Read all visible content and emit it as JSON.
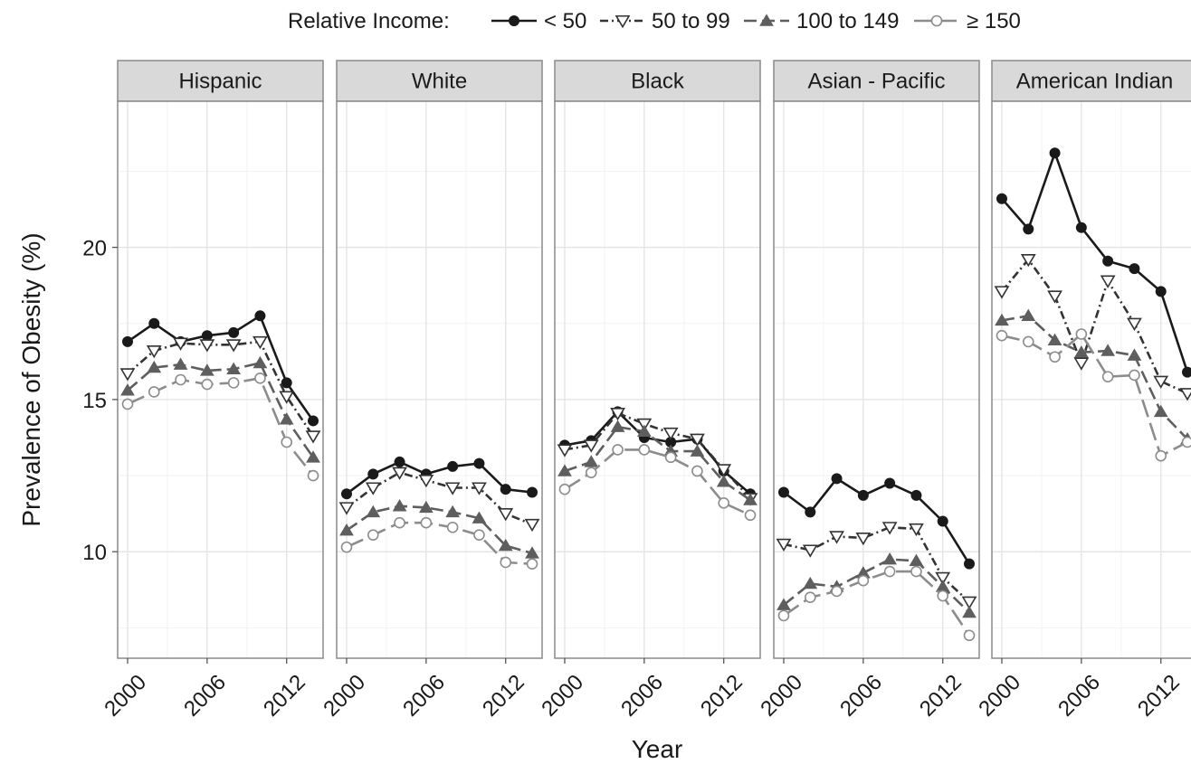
{
  "chart_data": {
    "type": "line",
    "legend": {
      "title": "Relative Income:",
      "position": "top"
    },
    "xlabel": "Year",
    "ylabel": "Prevalence of Obesity (%)",
    "ylim": [
      6.5,
      24.8
    ],
    "y_ticks": [
      10,
      15,
      20
    ],
    "x_ticks": [
      2000,
      2006,
      2012
    ],
    "x_tick_labels": [
      "2000",
      "2006",
      "2012"
    ],
    "grid": true,
    "series_styles": [
      {
        "name": "< 50",
        "color": "#1a1a1a",
        "dash": "",
        "marker": "filled-circle"
      },
      {
        "name": "50 to 99",
        "color": "#333333",
        "dash": "9 4 2 4",
        "marker": "open-triangle-down"
      },
      {
        "name": "100 to 149",
        "color": "#5e5e5e",
        "dash": "14 6",
        "marker": "filled-triangle-up"
      },
      {
        "name": "≥ 150",
        "color": "#8c8c8c",
        "dash": "20 7",
        "marker": "open-circle"
      }
    ],
    "panels": [
      {
        "name": "Hispanic",
        "x": [
          2000,
          2002,
          2004,
          2006,
          2008,
          2010,
          2012,
          2014
        ],
        "series": [
          {
            "name": "< 50",
            "values": [
              16.9,
              17.5,
              16.9,
              17.1,
              17.2,
              17.75,
              15.55,
              14.3
            ]
          },
          {
            "name": "50 to 99",
            "values": [
              15.85,
              16.6,
              16.85,
              16.8,
              16.8,
              16.9,
              15.1,
              13.8
            ]
          },
          {
            "name": "100 to 149",
            "values": [
              15.3,
              16.05,
              16.15,
              15.95,
              16.0,
              16.2,
              14.35,
              13.1
            ]
          },
          {
            "name": "≥ 150",
            "values": [
              14.85,
              15.25,
              15.65,
              15.5,
              15.55,
              15.7,
              13.6,
              12.5
            ]
          }
        ]
      },
      {
        "name": "White",
        "x": [
          2000,
          2002,
          2004,
          2006,
          2008,
          2010,
          2012,
          2014
        ],
        "series": [
          {
            "name": "< 50",
            "values": [
              11.9,
              12.55,
              12.95,
              12.55,
              12.8,
              12.9,
              12.05,
              11.95
            ]
          },
          {
            "name": "50 to 99",
            "values": [
              11.45,
              12.1,
              12.6,
              12.35,
              12.1,
              12.1,
              11.25,
              10.9
            ]
          },
          {
            "name": "100 to 149",
            "values": [
              10.7,
              11.3,
              11.5,
              11.45,
              11.3,
              11.1,
              10.2,
              9.95
            ]
          },
          {
            "name": "≥ 150",
            "values": [
              10.15,
              10.55,
              10.95,
              10.95,
              10.8,
              10.55,
              9.65,
              9.6
            ]
          }
        ]
      },
      {
        "name": "Black",
        "x": [
          2000,
          2002,
          2004,
          2006,
          2008,
          2010,
          2012,
          2014
        ],
        "series": [
          {
            "name": "< 50",
            "values": [
              13.5,
              13.65,
              14.6,
              13.75,
              13.6,
              13.7,
              12.65,
              11.9
            ]
          },
          {
            "name": "50 to 99",
            "values": [
              13.35,
              13.5,
              14.55,
              14.2,
              13.9,
              13.7,
              12.7,
              11.75
            ]
          },
          {
            "name": "100 to 149",
            "values": [
              12.65,
              12.95,
              14.1,
              13.95,
              13.3,
              13.3,
              12.3,
              11.7
            ]
          },
          {
            "name": "≥ 150",
            "values": [
              12.05,
              12.6,
              13.35,
              13.35,
              13.1,
              12.65,
              11.6,
              11.2
            ]
          }
        ]
      },
      {
        "name": "Asian - Pacific",
        "x": [
          2000,
          2002,
          2004,
          2006,
          2008,
          2010,
          2012,
          2014
        ],
        "series": [
          {
            "name": "< 50",
            "values": [
              11.95,
              11.3,
              12.4,
              11.85,
              12.25,
              11.85,
              11.0,
              9.6
            ]
          },
          {
            "name": "50 to 99",
            "values": [
              10.25,
              10.05,
              10.5,
              10.45,
              10.8,
              10.75,
              9.15,
              8.35
            ]
          },
          {
            "name": "100 to 149",
            "values": [
              8.25,
              8.95,
              8.85,
              9.3,
              9.75,
              9.7,
              8.85,
              8.0
            ]
          },
          {
            "name": "≥ 150",
            "values": [
              7.9,
              8.5,
              8.7,
              9.05,
              9.35,
              9.35,
              8.55,
              7.25
            ]
          }
        ]
      },
      {
        "name": "American Indian",
        "x": [
          2000,
          2002,
          2004,
          2006,
          2008,
          2010,
          2012,
          2014
        ],
        "series": [
          {
            "name": "< 50",
            "values": [
              21.6,
              20.6,
              23.1,
              20.65,
              19.55,
              19.3,
              18.55,
              15.9
            ]
          },
          {
            "name": "50 to 99",
            "values": [
              18.55,
              19.6,
              18.4,
              16.2,
              18.9,
              17.5,
              15.6,
              15.2
            ]
          },
          {
            "name": "100 to 149",
            "values": [
              17.6,
              17.75,
              16.95,
              16.55,
              16.6,
              16.45,
              14.6,
              13.7
            ]
          },
          {
            "name": "≥ 150",
            "values": [
              17.1,
              16.9,
              16.4,
              17.15,
              15.75,
              15.8,
              13.15,
              13.6
            ]
          }
        ]
      }
    ]
  }
}
